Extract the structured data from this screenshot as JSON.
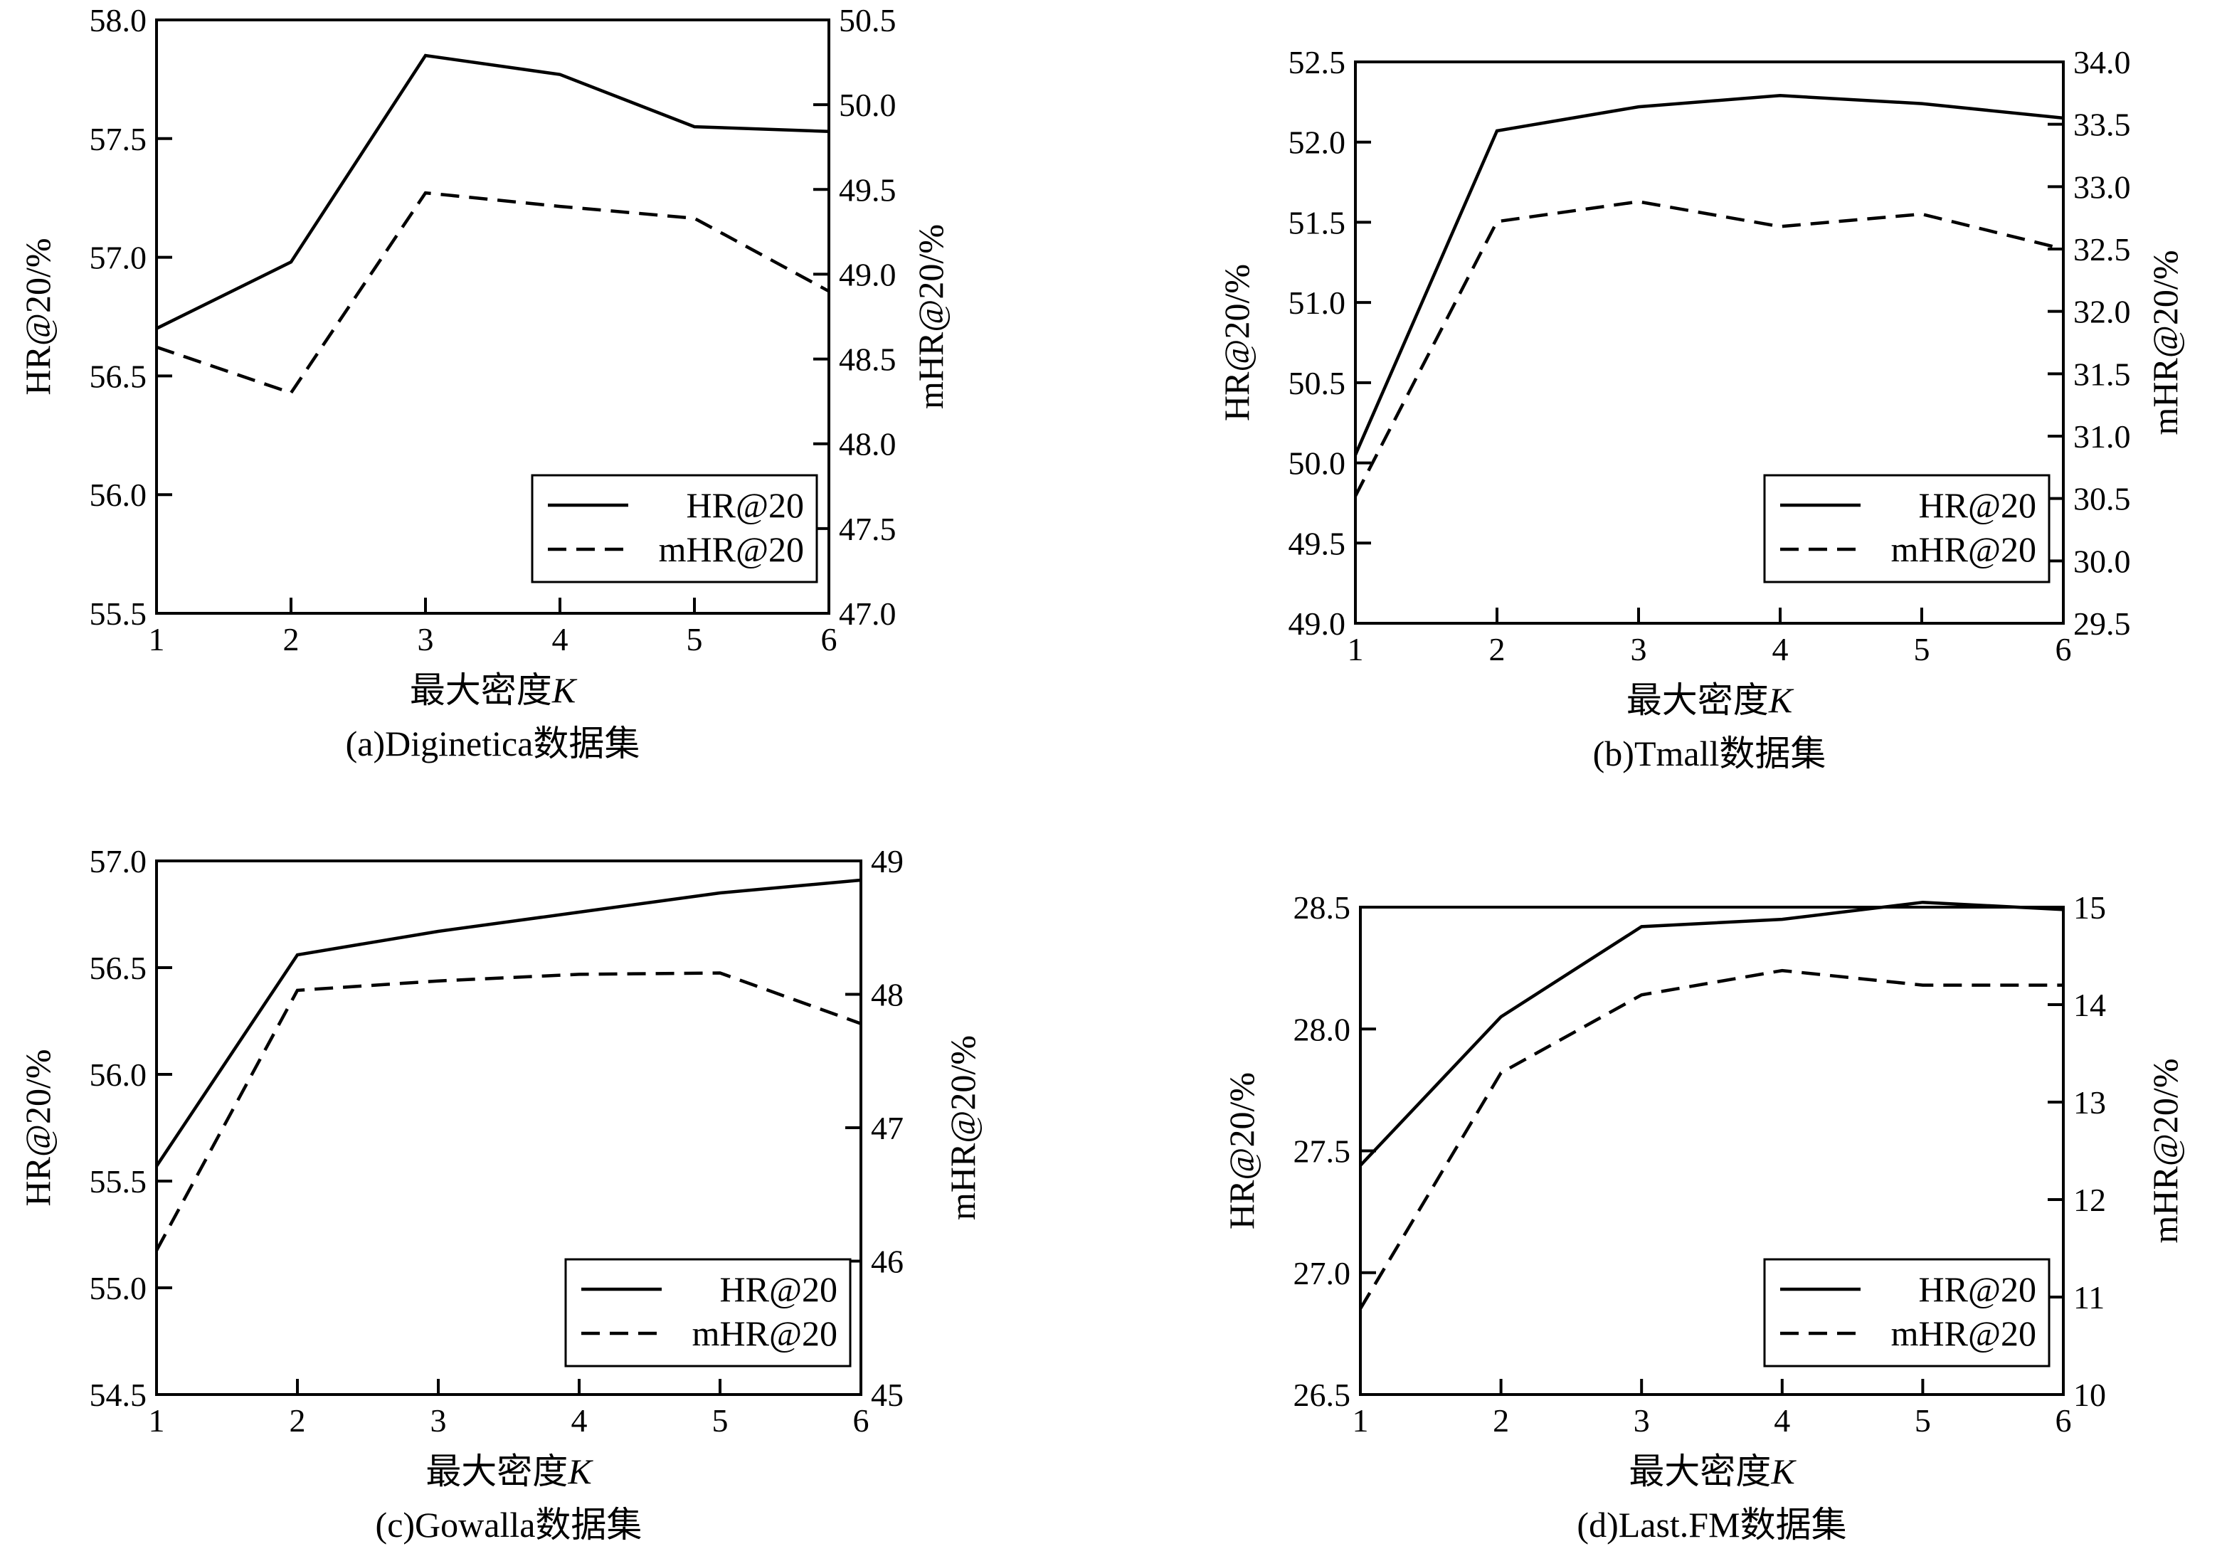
{
  "chart_data": [
    {
      "type": "line",
      "caption": "(a)Diginetica数据集",
      "xlabel": "最大密度",
      "xlabel_var": "K",
      "ylabel_left": "HR@20/%",
      "ylabel_right": "mHR@20/%",
      "x": [
        1,
        2,
        3,
        4,
        5,
        6
      ],
      "xlim": [
        1,
        6
      ],
      "ylim_left": [
        55.5,
        58.0
      ],
      "yticks_left": [
        "55.5",
        "56.0",
        "56.5",
        "57.0",
        "57.5",
        "58.0"
      ],
      "ylim_right": [
        47.0,
        50.5
      ],
      "yticks_right": [
        "47.0",
        "47.5",
        "48.0",
        "48.5",
        "49.0",
        "49.5",
        "50.0",
        "50.5"
      ],
      "legend_position": "lower-right",
      "series": [
        {
          "name": "HR@20",
          "axis": "left",
          "style": "solid",
          "values": [
            56.7,
            56.98,
            57.85,
            57.77,
            57.55,
            57.53
          ]
        },
        {
          "name": "mHR@20",
          "axis": "right",
          "style": "dashed",
          "values": [
            48.57,
            48.3,
            49.48,
            49.4,
            49.33,
            48.9
          ]
        }
      ]
    },
    {
      "type": "line",
      "caption": "(b)Tmall数据集",
      "xlabel": "最大密度",
      "xlabel_var": "K",
      "ylabel_left": "HR@20/%",
      "ylabel_right": "mHR@20/%",
      "x": [
        1,
        2,
        3,
        4,
        5,
        6
      ],
      "xlim": [
        1,
        6
      ],
      "ylim_left": [
        49.0,
        52.5
      ],
      "yticks_left": [
        "49.0",
        "49.5",
        "50.0",
        "50.5",
        "51.0",
        "51.5",
        "52.0",
        "52.5"
      ],
      "ylim_right": [
        29.5,
        34.0
      ],
      "yticks_right": [
        "29.5",
        "30.0",
        "30.5",
        "31.0",
        "31.5",
        "32.0",
        "32.5",
        "33.0",
        "33.5",
        "34.0"
      ],
      "legend_position": "lower-right",
      "series": [
        {
          "name": "HR@20",
          "axis": "left",
          "style": "solid",
          "values": [
            50.05,
            52.07,
            52.22,
            52.29,
            52.24,
            52.15
          ]
        },
        {
          "name": "mHR@20",
          "axis": "right",
          "style": "dashed",
          "values": [
            30.52,
            32.72,
            32.88,
            32.68,
            32.78,
            32.5
          ]
        }
      ]
    },
    {
      "type": "line",
      "caption": "(c)Gowalla数据集",
      "xlabel": "最大密度",
      "xlabel_var": "K",
      "ylabel_left": "HR@20/%",
      "ylabel_right": "mHR@20/%",
      "x": [
        1,
        2,
        3,
        4,
        5,
        6
      ],
      "xlim": [
        1,
        6
      ],
      "ylim_left": [
        54.5,
        57.0
      ],
      "yticks_left": [
        "54.5",
        "55.0",
        "55.5",
        "56.0",
        "56.5",
        "57.0"
      ],
      "ylim_right": [
        45,
        49
      ],
      "yticks_right": [
        "45",
        "46",
        "47",
        "48",
        "49"
      ],
      "legend_position": "lower-right",
      "series": [
        {
          "name": "HR@20",
          "axis": "left",
          "style": "solid",
          "values": [
            55.57,
            56.56,
            56.67,
            56.76,
            56.85,
            56.91
          ]
        },
        {
          "name": "mHR@20",
          "axis": "right",
          "style": "dashed",
          "values": [
            46.08,
            48.03,
            48.1,
            48.15,
            48.16,
            47.78
          ]
        }
      ]
    },
    {
      "type": "line",
      "caption": "(d)Last.FM数据集",
      "xlabel": "最大密度",
      "xlabel_var": "K",
      "ylabel_left": "HR@20/%",
      "ylabel_right": "mHR@20/%",
      "x": [
        1,
        2,
        3,
        4,
        5,
        6
      ],
      "xlim": [
        1,
        6
      ],
      "ylim_left": [
        26.5,
        28.5
      ],
      "yticks_left": [
        "26.5",
        "27.0",
        "27.5",
        "28.0",
        "28.5"
      ],
      "ylim_right": [
        10,
        15
      ],
      "yticks_right": [
        "10",
        "11",
        "12",
        "13",
        "14",
        "15"
      ],
      "legend_position": "lower-right",
      "series": [
        {
          "name": "HR@20",
          "axis": "left",
          "style": "solid",
          "values": [
            27.44,
            28.05,
            28.42,
            28.45,
            28.52,
            28.49
          ]
        },
        {
          "name": "mHR@20",
          "axis": "right",
          "style": "dashed",
          "values": [
            10.88,
            13.3,
            14.1,
            14.35,
            14.2,
            14.2
          ]
        }
      ]
    }
  ]
}
